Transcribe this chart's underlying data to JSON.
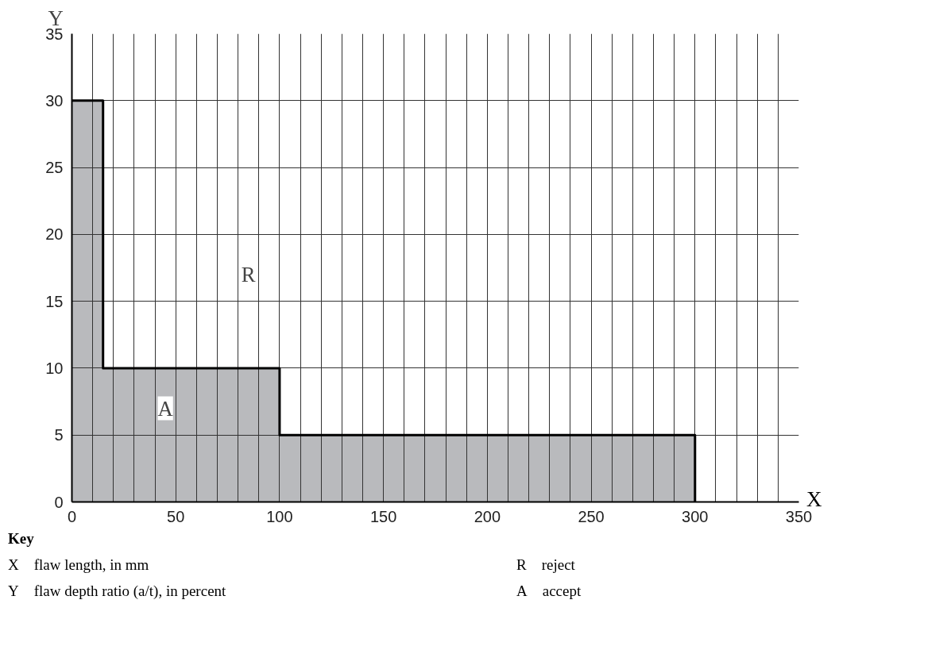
{
  "chart_data": {
    "type": "area",
    "xlabel": "X",
    "ylabel": "Y",
    "x": [
      0,
      15,
      15,
      100,
      100,
      300,
      300
    ],
    "series": [
      {
        "color": "#b9babd",
        "values": [
          30,
          30,
          10,
          10,
          5,
          5,
          0
        ]
      }
    ],
    "xlim": [
      0,
      350
    ],
    "ylim": [
      0,
      35
    ],
    "xticks": [
      0,
      {
        "value": 10,
        "label": null
      },
      {
        "value": 20,
        "label": null
      },
      {
        "value": 30,
        "label": null
      },
      {
        "value": 40,
        "label": null
      },
      50,
      {
        "value": 60,
        "label": null
      },
      {
        "value": 70,
        "label": null
      },
      {
        "value": 80,
        "label": null
      },
      {
        "value": 90,
        "label": null
      },
      100,
      {
        "value": 110,
        "label": null
      },
      {
        "value": 120,
        "label": null
      },
      {
        "value": 130,
        "label": null
      },
      {
        "value": 140,
        "label": null
      },
      150,
      {
        "value": 160,
        "label": null
      },
      {
        "value": 170,
        "label": null
      },
      {
        "value": 180,
        "label": null
      },
      {
        "value": 190,
        "label": null
      },
      200,
      {
        "value": 210,
        "label": null
      },
      {
        "value": 220,
        "label": null
      },
      {
        "value": 230,
        "label": null
      },
      {
        "value": 240,
        "label": null
      },
      250,
      {
        "value": 260,
        "label": null
      },
      {
        "value": 270,
        "label": null
      },
      {
        "value": 280,
        "label": null
      },
      {
        "value": 290,
        "label": null
      },
      300,
      {
        "value": 310,
        "label": null
      },
      {
        "value": 320,
        "label": null
      },
      {
        "value": 330,
        "label": null
      },
      {
        "value": 340,
        "label": null
      },
      350
    ],
    "yticks": [
      0,
      5,
      10,
      15,
      20,
      25,
      30,
      35
    ],
    "grid": true,
    "annotations": [
      {
        "text": "R",
        "x": 85,
        "y": 17
      },
      {
        "text": "A",
        "x": 45,
        "y": 7
      },
      "Key",
      "X flaw length, in mm",
      "Y flaw depth ratio (a/t), in percent",
      "R reject",
      "A accept"
    ]
  }
}
